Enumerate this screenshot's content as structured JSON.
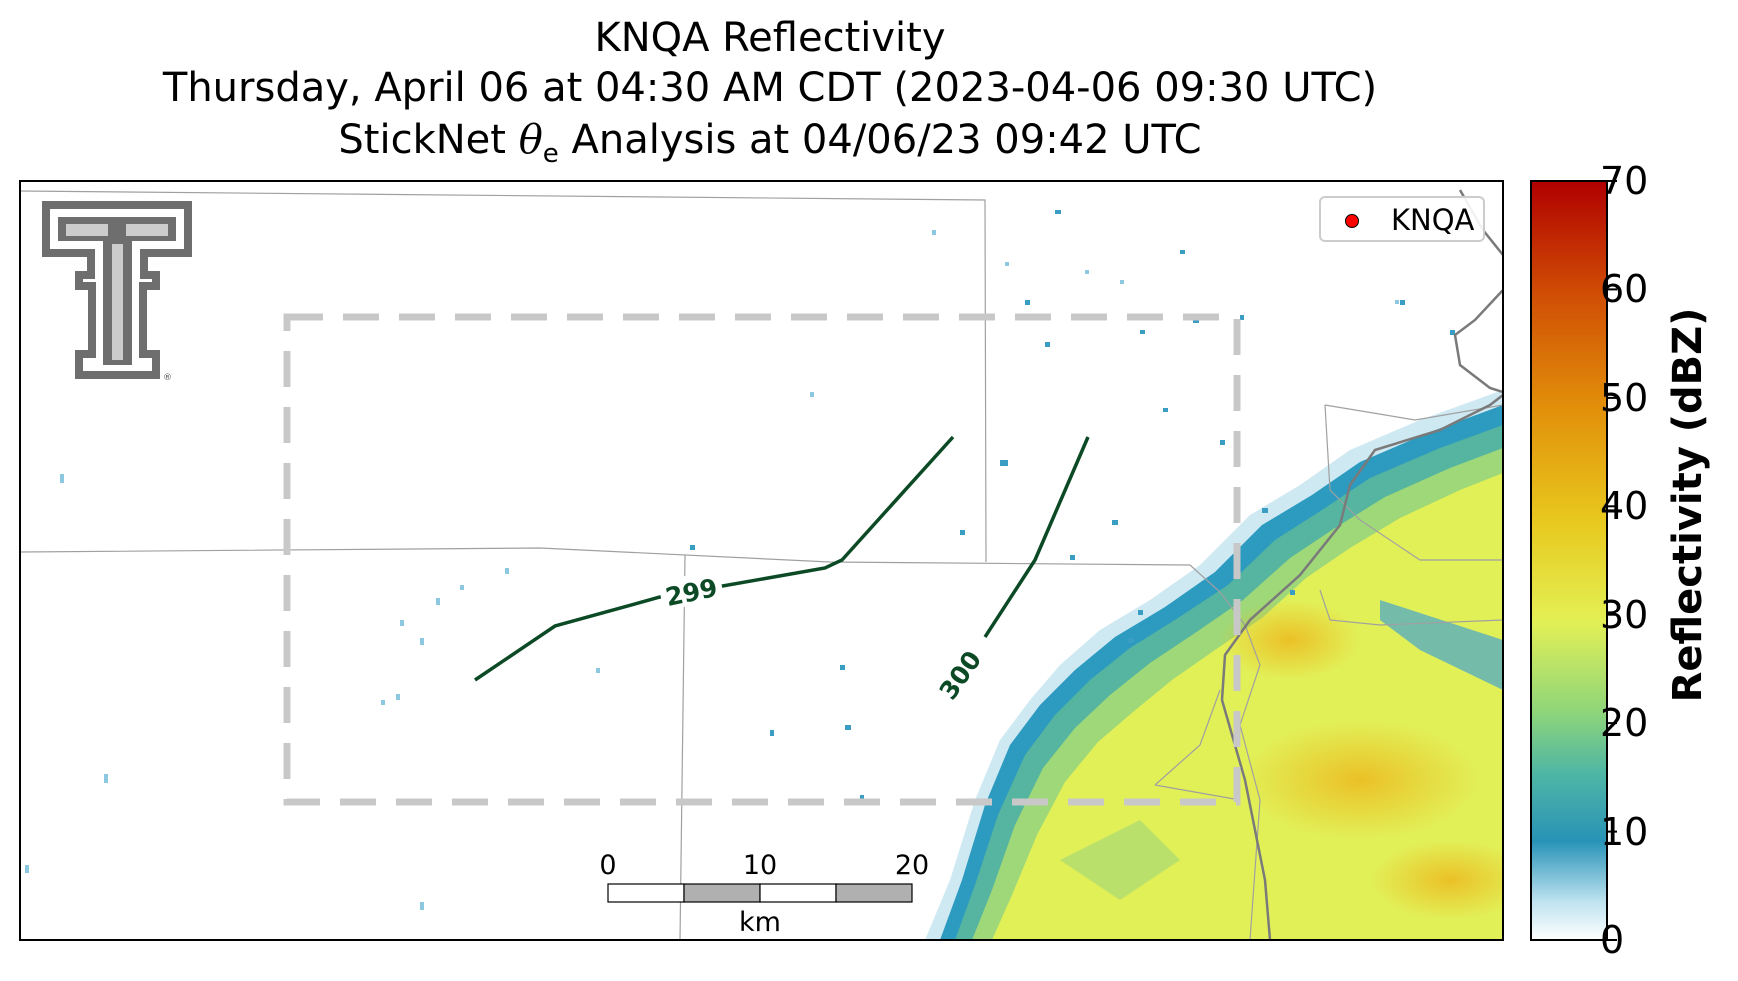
{
  "title": {
    "line1": "KNQA Reflectivity",
    "line2": "Thursday, April 06 at 04:30 AM CDT (2023-04-06 09:30 UTC)",
    "line3_prefix": "StickNet ",
    "line3_symbol": "θ",
    "line3_subscript": "e",
    "line3_suffix": " Analysis at 04/06/23 09:42 UTC"
  },
  "legend": {
    "label": "KNQA",
    "marker_color": "#ff0000"
  },
  "logo": {
    "name": "Texas Tech double-T logo",
    "registered_mark": "®"
  },
  "contours": [
    {
      "label": "299",
      "value": 299
    },
    {
      "label": "300",
      "value": 300
    }
  ],
  "contour_color": "#0b4a25",
  "analysis_domain": {
    "style": "dashed",
    "color": "#c8c8c8"
  },
  "scale_bar": {
    "labels": [
      "0",
      "10",
      "20"
    ],
    "unit": "km"
  },
  "colorbar": {
    "label": "Reflectivity (dBZ)",
    "min": 0,
    "max": 70,
    "ticks": [
      "0",
      "10",
      "20",
      "30",
      "40",
      "50",
      "60",
      "70"
    ],
    "colors": [
      "#ffffff",
      "#2893b7",
      "#6ccf84",
      "#e6f050",
      "#e9c31d",
      "#e28e0a",
      "#d14d05",
      "#b10000"
    ]
  },
  "radar_echo": {
    "description_colors": {
      "light": "#2a9bc0",
      "moderate": "#9fd86a",
      "strong": "#e8ec52",
      "heavy": "#efc22a"
    }
  }
}
